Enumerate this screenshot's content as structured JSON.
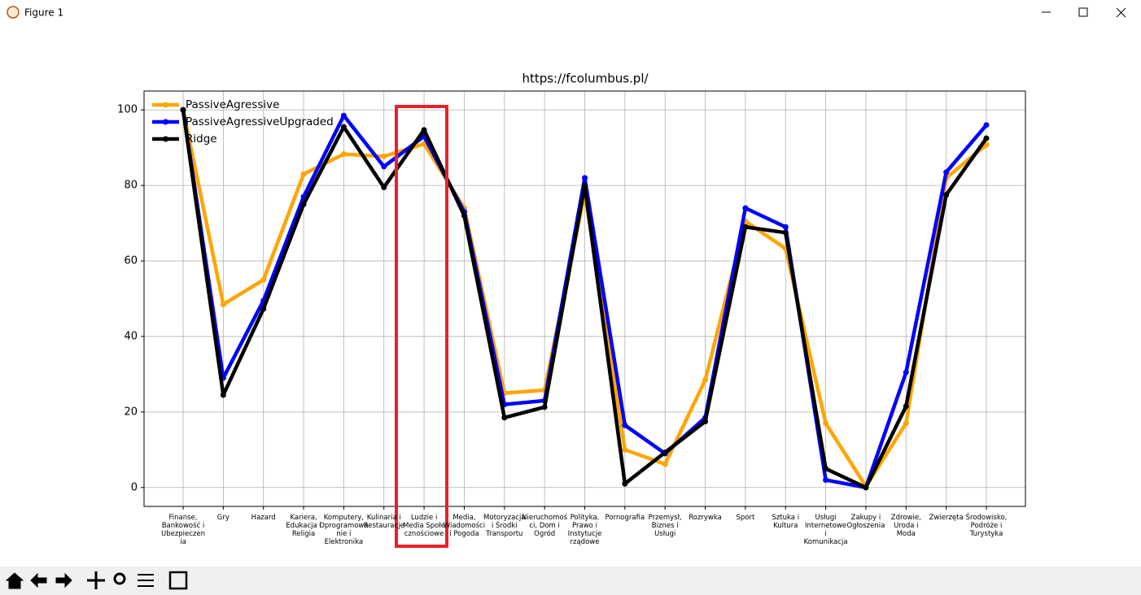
{
  "window": {
    "title": "Figure 1"
  },
  "chart_data": {
    "type": "line",
    "title": "https://fcolumbus.pl/",
    "categories": [
      "Finanse,\nBankowość i\nUbezpieczen\nia",
      "Gry",
      "Hazard",
      "Kariera,\nEdukacja i\nReligia",
      "Komputery,\nOprogramowa\nnie i\nElektronika",
      "Kulinaria i\nRestauracje",
      "Ludzie i\nMedia Społe\ncznościowe",
      "Media,\nWiadomości\ni Pogoda",
      "Motoryzacja\ni Środki\nTransportu",
      "Nieruchomoś\nci, Dom i\nOgród",
      "Polityka,\nPrawo i\nInstytucje\nrządowe",
      "Pornografia",
      "Przemysł,\nBiznes i\nUsługi",
      "Rozrywka",
      "Sport",
      "Sztuka i\nKultura",
      "Usługi\nInternetowe\ni\nKomunikacja",
      "Zakupy i\nOgłoszenia",
      "Zdrowie,\nUroda i\nModa",
      "Zwierzęta",
      "Środowisko,\nPodróże i\nTurystyka"
    ],
    "series": [
      {
        "name": "PassiveAgressive",
        "color": "#ffa500",
        "values": [
          100,
          48.5,
          55,
          83,
          88.3,
          87.7,
          91,
          74,
          25,
          25.8,
          78,
          10,
          6.2,
          28.5,
          70.5,
          63.3,
          17,
          0.3,
          17,
          82,
          90.8
        ]
      },
      {
        "name": "PassiveAgressiveUpgraded",
        "color": "#0000ff",
        "values": [
          100,
          29,
          49.5,
          77,
          98.5,
          85,
          93,
          73,
          22,
          23,
          82,
          16.5,
          9,
          18.5,
          74,
          69,
          2,
          0,
          30.5,
          83.5,
          96
        ]
      },
      {
        "name": "Ridge",
        "color": "#000000",
        "values": [
          100,
          24.5,
          47.3,
          75,
          95.5,
          79.5,
          94.7,
          72,
          18.5,
          21.3,
          80,
          1,
          9.3,
          17.5,
          69,
          67.5,
          5,
          0,
          21.5,
          77.5,
          92.5
        ]
      }
    ],
    "ylim": [
      -5,
      105
    ],
    "yticks": [
      0,
      20,
      40,
      60,
      80,
      100
    ],
    "grid": true,
    "legend": "upper left"
  }
}
